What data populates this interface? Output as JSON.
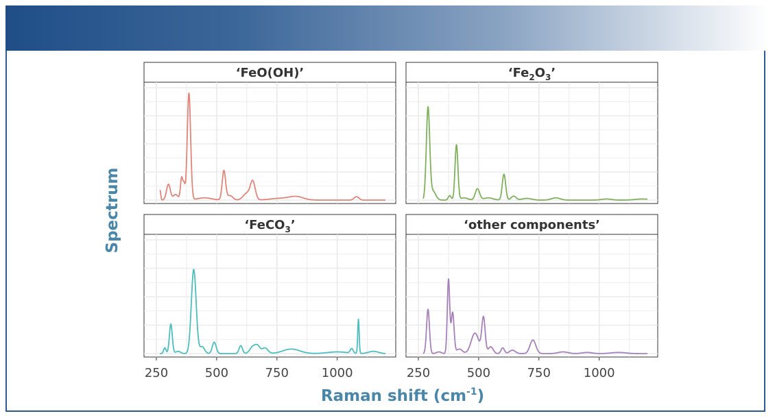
{
  "chart_data": {
    "type": "line",
    "layout": "2x2 facets, shared x axis",
    "xlabel": "Raman shift (cm",
    "xlabel_superscript": "-1",
    "xlabel_suffix": ")",
    "ylabel": "Spectrum",
    "xlim": [
      250,
      1200
    ],
    "ylim": [
      0,
      1
    ],
    "x_ticks": [
      250,
      500,
      750,
      1000
    ],
    "y_ticks_shown": false,
    "grid": true,
    "legend": "none",
    "panels": [
      {
        "title_parts": [
          {
            "t": "‘FeO(OH)’"
          }
        ],
        "color": "#e0857a",
        "x_range": [
          265,
          1200
        ],
        "peaks": [
          [
            265,
            0.09,
            3
          ],
          [
            300,
            0.14,
            8
          ],
          [
            330,
            0.05,
            10
          ],
          [
            355,
            0.2,
            5
          ],
          [
            365,
            0.12,
            4
          ],
          [
            385,
            0.95,
            7
          ],
          [
            450,
            0.02,
            30
          ],
          [
            530,
            0.26,
            7
          ],
          [
            555,
            0.04,
            12
          ],
          [
            625,
            0.06,
            15
          ],
          [
            650,
            0.16,
            10
          ],
          [
            760,
            0.015,
            40
          ],
          [
            830,
            0.03,
            30
          ],
          [
            1080,
            0.03,
            10
          ]
        ]
      },
      {
        "title_parts": [
          {
            "t": "‘Fe"
          },
          {
            "t": "2",
            "sub": true
          },
          {
            "t": "O"
          },
          {
            "t": "3",
            "sub": true
          },
          {
            "t": "’"
          }
        ],
        "color": "#7fb05c",
        "x_range": [
          270,
          1200
        ],
        "peaks": [
          [
            290,
            0.81,
            7
          ],
          [
            310,
            0.08,
            12
          ],
          [
            380,
            0.04,
            6
          ],
          [
            408,
            0.49,
            6
          ],
          [
            440,
            0.02,
            15
          ],
          [
            495,
            0.1,
            9
          ],
          [
            540,
            0.02,
            20
          ],
          [
            605,
            0.23,
            7
          ],
          [
            645,
            0.035,
            10
          ],
          [
            700,
            0.015,
            20
          ],
          [
            820,
            0.02,
            18
          ],
          [
            1030,
            0.01,
            20
          ],
          [
            1180,
            0.01,
            30
          ]
        ]
      },
      {
        "title_parts": [
          {
            "t": "‘FeCO"
          },
          {
            "t": "3",
            "sub": true
          },
          {
            "t": "’"
          }
        ],
        "color": "#4dbdbd",
        "x_range": [
          265,
          1200
        ],
        "peaks": [
          [
            285,
            0.05,
            5
          ],
          [
            310,
            0.26,
            6
          ],
          [
            340,
            0.02,
            10
          ],
          [
            405,
            0.74,
            10
          ],
          [
            440,
            0.06,
            10
          ],
          [
            490,
            0.1,
            8
          ],
          [
            600,
            0.07,
            7
          ],
          [
            650,
            0.06,
            12
          ],
          [
            670,
            0.06,
            10
          ],
          [
            700,
            0.05,
            12
          ],
          [
            810,
            0.04,
            35
          ],
          [
            1000,
            0.015,
            40
          ],
          [
            1060,
            0.04,
            6
          ],
          [
            1088,
            0.3,
            3
          ],
          [
            1150,
            0.02,
            20
          ]
        ]
      },
      {
        "title_parts": [
          {
            "t": "‘other components’"
          }
        ],
        "color": "#a681b9",
        "x_range": [
          270,
          1200
        ],
        "peaks": [
          [
            290,
            0.39,
            6
          ],
          [
            335,
            0.015,
            10
          ],
          [
            375,
            0.65,
            5
          ],
          [
            392,
            0.36,
            6
          ],
          [
            420,
            0.04,
            12
          ],
          [
            485,
            0.18,
            16
          ],
          [
            520,
            0.31,
            7
          ],
          [
            550,
            0.06,
            10
          ],
          [
            600,
            0.05,
            7
          ],
          [
            640,
            0.03,
            12
          ],
          [
            725,
            0.12,
            12
          ],
          [
            850,
            0.015,
            20
          ],
          [
            950,
            0.01,
            20
          ],
          [
            1080,
            0.01,
            30
          ]
        ]
      }
    ]
  }
}
